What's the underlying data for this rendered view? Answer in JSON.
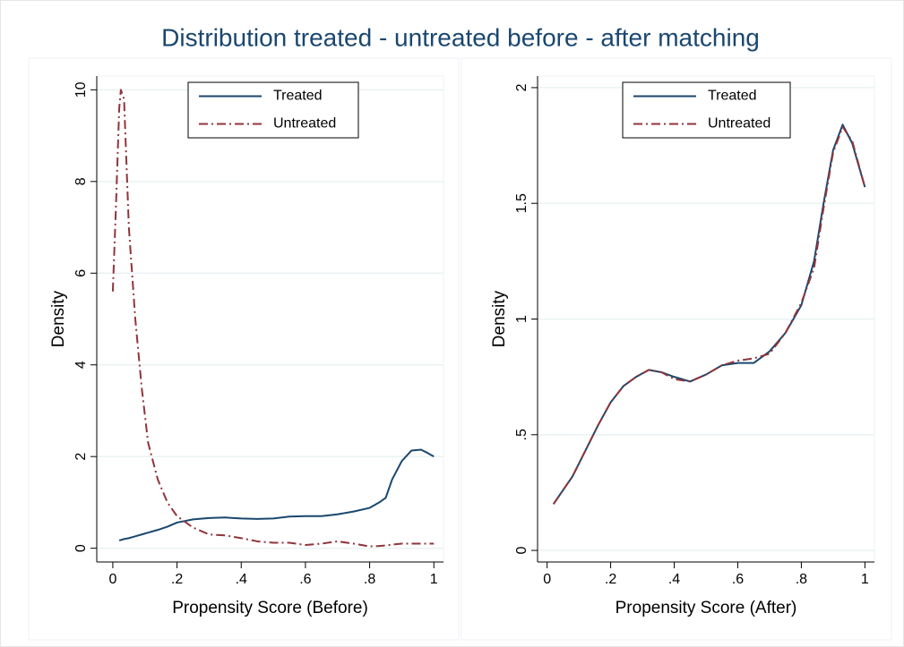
{
  "title": "Distribution treated - untreated before - after matching",
  "chart_data": [
    {
      "type": "line",
      "xlabel": "Propensity Score (Before)",
      "ylabel": "Density",
      "x": [
        0,
        0.01,
        0.02,
        0.025,
        0.035,
        0.05,
        0.07,
        0.09,
        0.11,
        0.14,
        0.17,
        0.2,
        0.25,
        0.3,
        0.35,
        0.4,
        0.45,
        0.5,
        0.55,
        0.6,
        0.65,
        0.7,
        0.75,
        0.8,
        0.83,
        0.85,
        0.87,
        0.9,
        0.93,
        0.96,
        0.98,
        1.0
      ],
      "series": [
        {
          "name": "Treated",
          "color": "#1a476f",
          "values": [
            null,
            null,
            0.17,
            0.18,
            0.2,
            0.22,
            0.26,
            0.3,
            0.34,
            0.4,
            0.47,
            0.56,
            0.63,
            0.66,
            0.67,
            0.65,
            0.64,
            0.65,
            0.69,
            0.7,
            0.7,
            0.74,
            0.8,
            0.88,
            1.0,
            1.1,
            1.5,
            1.9,
            2.13,
            2.15,
            2.08,
            2.0
          ]
        },
        {
          "name": "Untreated",
          "color": "#90353b",
          "values": [
            5.6,
            7.5,
            9.6,
            10.0,
            9.8,
            7.0,
            5.0,
            3.5,
            2.3,
            1.5,
            1.0,
            0.7,
            0.45,
            0.3,
            0.28,
            0.22,
            0.15,
            0.12,
            0.12,
            0.07,
            0.1,
            0.15,
            0.1,
            0.04,
            0.05,
            0.06,
            0.08,
            0.1,
            0.1,
            0.1,
            0.1,
            0.1
          ]
        }
      ],
      "xlim": [
        -0.05,
        1.03
      ],
      "ylim": [
        -0.3,
        10.3
      ],
      "xticks": [
        0,
        {
          "value": 0.2,
          "label": ".2"
        },
        {
          "value": 0.4,
          "label": ".4"
        },
        {
          "value": 0.6,
          "label": ".6"
        },
        {
          "value": 0.8,
          "label": ".8"
        },
        1
      ],
      "yticks": [
        0,
        2,
        4,
        6,
        8,
        10
      ],
      "grid": true,
      "legend": "top"
    },
    {
      "type": "line",
      "xlabel": "Propensity Score (After)",
      "ylabel": "Density",
      "x": [
        0.02,
        0.05,
        0.08,
        0.12,
        0.16,
        0.2,
        0.24,
        0.28,
        0.32,
        0.36,
        0.4,
        0.45,
        0.5,
        0.55,
        0.6,
        0.65,
        0.7,
        0.75,
        0.8,
        0.84,
        0.87,
        0.9,
        0.93,
        0.96,
        1.0
      ],
      "series": [
        {
          "name": "Treated",
          "color": "#1a476f",
          "values": [
            0.2,
            0.26,
            0.32,
            0.43,
            0.54,
            0.64,
            0.71,
            0.75,
            0.78,
            0.77,
            0.75,
            0.73,
            0.76,
            0.8,
            0.81,
            0.81,
            0.86,
            0.94,
            1.06,
            1.25,
            1.5,
            1.73,
            1.84,
            1.76,
            1.57
          ]
        },
        {
          "name": "Untreated",
          "color": "#90353b",
          "values": [
            0.2,
            0.26,
            0.32,
            0.43,
            0.54,
            0.64,
            0.71,
            0.75,
            0.78,
            0.77,
            0.74,
            0.73,
            0.76,
            0.8,
            0.82,
            0.83,
            0.85,
            0.94,
            1.07,
            1.22,
            1.48,
            1.72,
            1.83,
            1.77,
            1.57
          ]
        }
      ],
      "xlim": [
        -0.03,
        1.03
      ],
      "ylim": [
        -0.05,
        2.05
      ],
      "xticks": [
        0,
        {
          "value": 0.2,
          "label": ".2"
        },
        {
          "value": 0.4,
          "label": ".4"
        },
        {
          "value": 0.6,
          "label": ".6"
        },
        {
          "value": 0.8,
          "label": ".8"
        },
        1
      ],
      "yticks": [
        0,
        {
          "value": 0.5,
          "label": ".5"
        },
        1,
        1.5,
        2
      ],
      "grid": true,
      "legend": "top"
    }
  ]
}
